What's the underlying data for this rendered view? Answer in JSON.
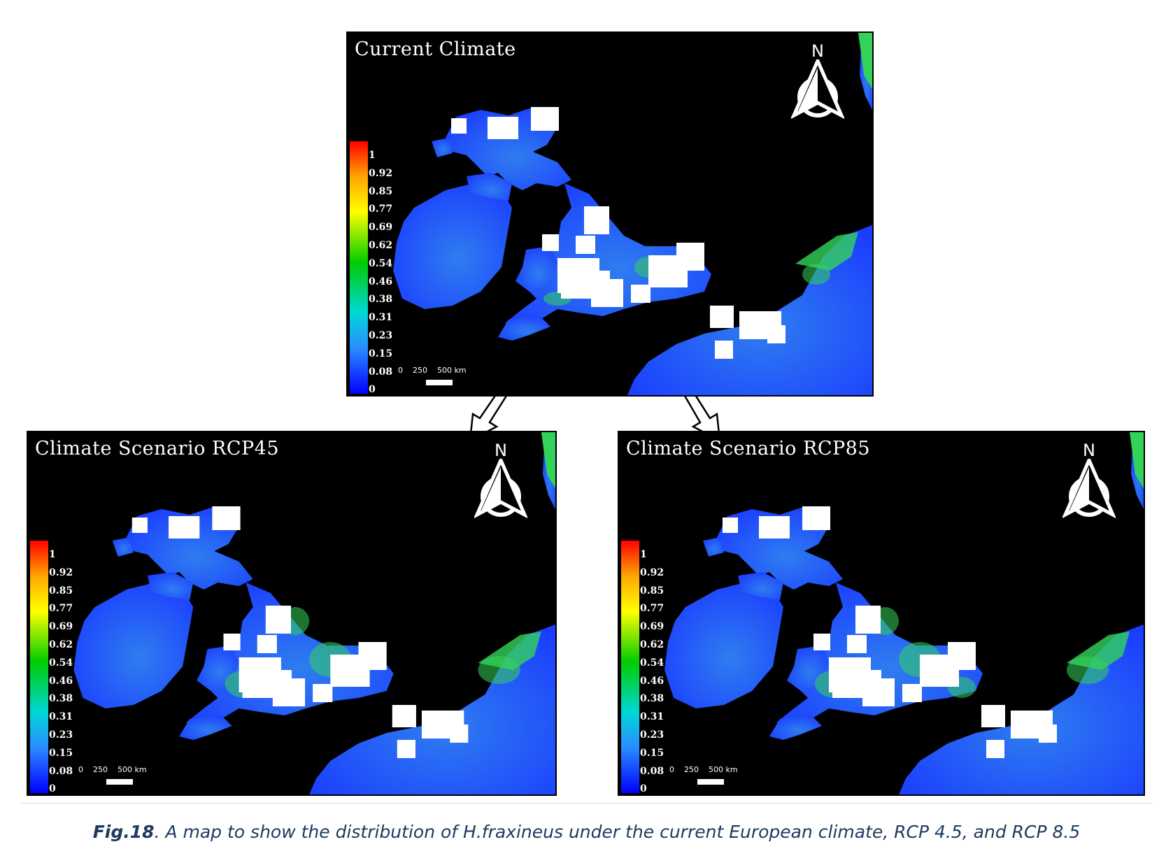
{
  "panels": {
    "current": {
      "title": "Current Climate"
    },
    "rcp45": {
      "title": "Climate Scenario RCP45"
    },
    "rcp85": {
      "title": "Climate Scenario RCP85"
    }
  },
  "north_label": "N",
  "legend": {
    "labels": [
      "1",
      "0.92",
      "0.85",
      "0.77",
      "0.69",
      "0.62",
      "0.54",
      "0.46",
      "0.38",
      "0.31",
      "0.23",
      "0.15",
      "0.08",
      "0"
    ],
    "colors": {
      "top": "#ff0000",
      "high": "#ffa500",
      "upper_mid": "#ffff00",
      "mid": "#00cc00",
      "lower_mid": "#00d8d8",
      "bottom": "#0000ff"
    }
  },
  "scale": {
    "ticks": [
      "0",
      "250",
      "500 km"
    ]
  },
  "map_colors": {
    "sea": "#000000",
    "land_low": "#1a3cff",
    "land_mid": "#2f7df0",
    "land_high": "#33d35a",
    "occurrence": "#ffffff"
  },
  "caption": {
    "label": "Fig.18",
    "text": ". A map to show the distribution of H.fraxineus under the current European climate, RCP 4.5, and RCP 8.5"
  }
}
